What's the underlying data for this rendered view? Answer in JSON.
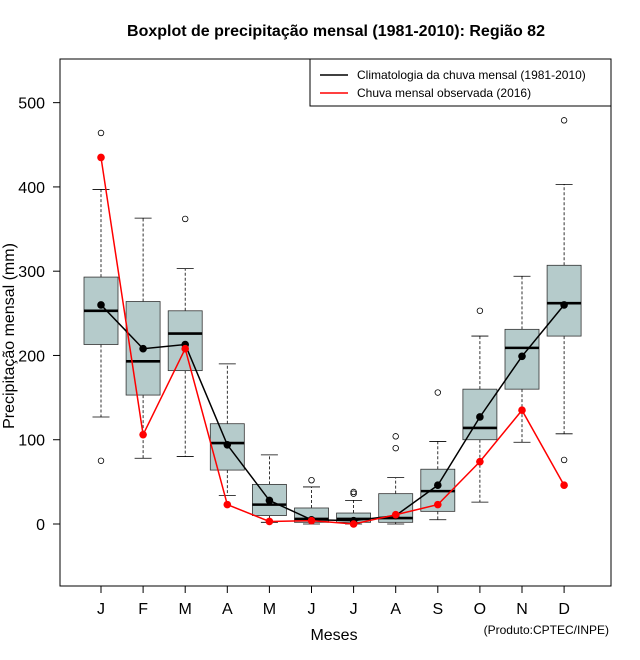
{
  "chart_data": {
    "type": "boxplot",
    "title": "Boxplot de precipitação mensal (1981-2010): Região 82",
    "xlabel": "Meses",
    "ylabel": "Precipitação mensal (mm)",
    "credit": "(Produto:CPTEC/INPE)",
    "ylim": [
      -75,
      550
    ],
    "yticks": [
      0,
      100,
      200,
      300,
      400,
      500
    ],
    "categories": [
      "J",
      "F",
      "M",
      "A",
      "M",
      "J",
      "J",
      "A",
      "S",
      "O",
      "N",
      "D"
    ],
    "boxes": [
      {
        "min": 127,
        "q1": 213,
        "median": 253,
        "q3": 293,
        "max": 397,
        "outliers": [
          464,
          75
        ]
      },
      {
        "min": 78,
        "q1": 153,
        "median": 193,
        "q3": 264,
        "max": 363,
        "outliers": []
      },
      {
        "min": 80,
        "q1": 182,
        "median": 226,
        "q3": 253,
        "max": 303,
        "outliers": [
          362
        ]
      },
      {
        "min": 34,
        "q1": 64,
        "median": 96,
        "q3": 119,
        "max": 190,
        "outliers": []
      },
      {
        "min": 2,
        "q1": 10,
        "median": 23,
        "q3": 47,
        "max": 82,
        "outliers": []
      },
      {
        "min": 0,
        "q1": 2,
        "median": 6,
        "q3": 19,
        "max": 44,
        "outliers": [
          52
        ]
      },
      {
        "min": 0,
        "q1": 2,
        "median": 6,
        "q3": 13,
        "max": 28,
        "outliers": [
          36,
          38
        ]
      },
      {
        "min": 0,
        "q1": 2,
        "median": 7,
        "q3": 36,
        "max": 55,
        "outliers": [
          90,
          104
        ]
      },
      {
        "min": 5,
        "q1": 15,
        "median": 39,
        "q3": 65,
        "max": 98,
        "outliers": [
          156
        ]
      },
      {
        "min": 26,
        "q1": 100,
        "median": 114,
        "q3": 160,
        "max": 223,
        "outliers": [
          253
        ]
      },
      {
        "min": 97,
        "q1": 160,
        "median": 209,
        "q3": 231,
        "max": 294,
        "outliers": []
      },
      {
        "min": 107,
        "q1": 223,
        "median": 262,
        "q3": 307,
        "max": 403,
        "outliers": [
          479,
          76
        ]
      }
    ],
    "series": [
      {
        "name": "Climatologia da chuva mensal (1981-2010)",
        "color": "#000000",
        "values": [
          260,
          208,
          213,
          94,
          28,
          5,
          4,
          10,
          46,
          127,
          199,
          260
        ]
      },
      {
        "name": "Chuva mensal observada (2016)",
        "color": "#ff0000",
        "values": [
          435,
          106,
          208,
          23,
          3,
          4,
          0,
          11,
          23,
          74,
          135,
          46
        ]
      }
    ],
    "box_fill": "#b5cbcb",
    "legend_position": "top-right"
  }
}
